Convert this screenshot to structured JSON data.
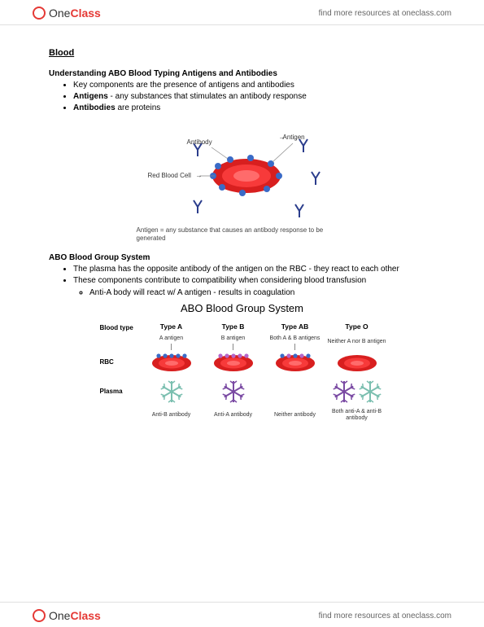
{
  "brand": {
    "prefix": "One",
    "suffix": "Class"
  },
  "header_link": "find more resources at oneclass.com",
  "footer_link": "find more resources at oneclass.com",
  "title_main": "Blood",
  "section1": {
    "heading": "Understanding ABO Blood Typing Antigens and Antibodies",
    "bullets": [
      {
        "text": "Key components are the presence of antigens and antibodies"
      },
      {
        "bold": "Antigens",
        "text": " - any substances that stimulates an antibody response"
      },
      {
        "bold": "Antibodies",
        "text": " are proteins"
      }
    ]
  },
  "diagram1": {
    "label_antibody": "Antibody",
    "label_antigen": "Antigen",
    "label_rbc": "Red Blood Cell",
    "caption": "Antigen = any substance that causes an antibody response to be generated",
    "rbc_color_outer": "#d81f1f",
    "rbc_color_mid": "#f73a3a",
    "rbc_color_inner": "#ff6b6b",
    "antigen_color": "#3a6bc7",
    "antibody_color": "#2b3d8c"
  },
  "section2": {
    "heading": "ABO Blood Group System",
    "bullets": [
      "The plasma has the opposite antibody of the antigen on the RBC - they react to each other",
      "These components contribute to compatibility when considering blood transfusion"
    ],
    "sub": [
      "Anti-A body will react w/ A antigen - results in coagulation"
    ]
  },
  "diagram2": {
    "title": "ABO Blood Group System",
    "row_labels": {
      "bloodtype": "Blood type",
      "rbc": "RBC",
      "plasma": "Plasma"
    },
    "columns": [
      {
        "head": "Type A",
        "antigen_label": "A antigen",
        "antigen_dots": [
          "#3a6bc7"
        ],
        "antibody_label": "Anti-B antibody",
        "antibody_colors": [
          "#7bbfb0"
        ]
      },
      {
        "head": "Type B",
        "antigen_label": "B antigen",
        "antigen_dots": [
          "#b566c9"
        ],
        "antibody_label": "Anti-A antibody",
        "antibody_colors": [
          "#7a4aa3"
        ]
      },
      {
        "head": "Type AB",
        "antigen_label": "Both A & B antigens",
        "antigen_dots": [
          "#3a6bc7",
          "#b566c9"
        ],
        "antibody_label": "Neither antibody",
        "antibody_colors": []
      },
      {
        "head": "Type O",
        "antigen_label": "Neither A nor B antigen",
        "antigen_dots": [],
        "antibody_label": "Both anti-A & anti-B antibody",
        "antibody_colors": [
          "#7a4aa3",
          "#7bbfb0"
        ]
      }
    ],
    "rbc_color_outer": "#d81f1f",
    "rbc_color_mid": "#f73a3a",
    "rbc_color_inner": "#ff6b6b"
  }
}
